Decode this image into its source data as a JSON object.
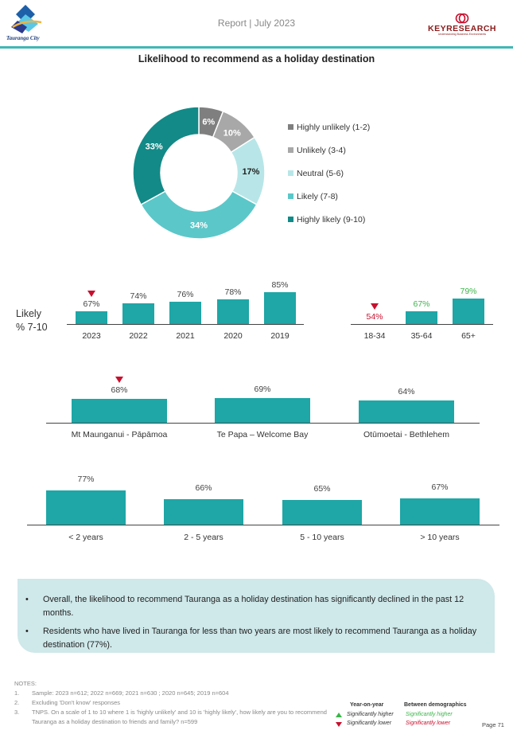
{
  "header": {
    "report_title": "Report | July 2023",
    "logo_text": "Tauranga City",
    "kr_logo": "KEYRESEARCH",
    "kr_tagline": "Understanding Business Environments"
  },
  "chart_title": "Likelihood to recommend as a holiday destination",
  "colors": {
    "highly_unlikely": "#7f7f7f",
    "unlikely": "#a8a8a8",
    "neutral": "#b8e6e8",
    "likely": "#5bc7c9",
    "highly_likely": "#138a87",
    "bar": "#1fa6a6",
    "bar_light": "#5bc7c9",
    "sig_higher": "#3bb54a",
    "sig_lower": "#c8102e"
  },
  "chart_data": [
    {
      "type": "pie",
      "categories": [
        "Highly unlikely (1-2)",
        "Unlikely (3-4)",
        "Neutral (5-6)",
        "Likely (7-8)",
        "Highly likely (9-10)"
      ],
      "values": [
        6,
        10,
        17,
        34,
        33
      ],
      "labels": [
        "6%",
        "10%",
        "17%",
        "34%",
        "33%"
      ],
      "legend": "right"
    },
    {
      "type": "bar",
      "ylabel": "Likely % 7-10",
      "categories": [
        "2023",
        "2022",
        "2021",
        "2020",
        "2019"
      ],
      "values": [
        67,
        74,
        76,
        78,
        85
      ],
      "labels": [
        "67%",
        "74%",
        "76%",
        "78%",
        "85%"
      ],
      "markers": [
        "lower",
        "",
        "",
        "",
        ""
      ]
    },
    {
      "type": "bar",
      "categories": [
        "18-34",
        "35-64",
        "65+"
      ],
      "values": [
        54,
        67,
        79
      ],
      "labels": [
        "54%",
        "67%",
        "79%"
      ],
      "markers": [
        "lower",
        "",
        ""
      ],
      "label_styles": [
        "lower",
        "higher",
        "higher"
      ]
    },
    {
      "type": "bar",
      "categories": [
        "Mt Maunganui - Pāpāmoa",
        "Te Papa – Welcome Bay",
        "Otūmoetai - Bethlehem"
      ],
      "values": [
        68,
        69,
        64
      ],
      "labels": [
        "68%",
        "69%",
        "64%"
      ],
      "markers": [
        "lower",
        "",
        ""
      ]
    },
    {
      "type": "bar",
      "categories": [
        "< 2 years",
        "2 - 5 years",
        "5 - 10 years",
        "> 10 years"
      ],
      "values": [
        77,
        66,
        65,
        67
      ],
      "labels": [
        "77%",
        "66%",
        "65%",
        "67%"
      ]
    }
  ],
  "likely_label_1": "Likely",
  "likely_label_2": "% 7-10",
  "summary": [
    "Overall, the likelihood to recommend Tauranga as a holiday destination has significantly declined in the past 12 months.",
    "Residents who have lived in Tauranga for less than two years are most likely to recommend Tauranga as a holiday destination (77%)."
  ],
  "notes": {
    "heading": "NOTES:",
    "items": [
      {
        "num": "1.",
        "text": "Sample: 2023 n=612; 2022 n=669; 2021 n=630 ; 2020 n=645; 2019 n=604"
      },
      {
        "num": "2.",
        "text": "Excluding 'Don't know' responses"
      },
      {
        "num": "3.",
        "text": "TNPS. On a scale of 1 to 10 where 1 is 'highly unlikely' and 10 is 'highly likely', how likely are you to recommend Tauranga as a holiday destination to friends and family? n=599"
      }
    ]
  },
  "key": {
    "yoy_title": "Year-on-year",
    "demo_title": "Between demographics",
    "higher": "Significantly higher",
    "lower": "Significantly lower"
  },
  "page_number": "Page 71"
}
